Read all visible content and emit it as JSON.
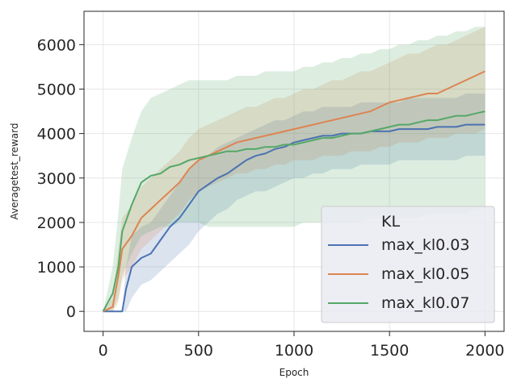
{
  "chart_data": {
    "type": "line",
    "title": "",
    "xlabel": "Epoch",
    "ylabel": "Averagetest_reward",
    "xlim": [
      -100,
      2100
    ],
    "ylim": [
      -450,
      6750
    ],
    "xticks": [
      "0",
      "500",
      "1000",
      "1500",
      "2000"
    ],
    "yticks": [
      "0",
      "1000",
      "2000",
      "3000",
      "4000",
      "5000",
      "6000"
    ],
    "grid": true,
    "legend": {
      "title": "KL",
      "placement": "lower-right"
    },
    "series": [
      {
        "name": "max_kl0.03",
        "color": "#4c72b0",
        "x": [
          0,
          50,
          100,
          120,
          150,
          200,
          250,
          300,
          350,
          400,
          450,
          500,
          550,
          600,
          650,
          700,
          750,
          800,
          850,
          900,
          950,
          1000,
          1050,
          1100,
          1150,
          1200,
          1250,
          1300,
          1350,
          1400,
          1450,
          1500,
          1550,
          1600,
          1650,
          1700,
          1750,
          1800,
          1850,
          1900,
          1950,
          2000
        ],
        "y": [
          0,
          0,
          0,
          500,
          1000,
          1200,
          1300,
          1600,
          1900,
          2100,
          2400,
          2700,
          2850,
          3000,
          3100,
          3250,
          3400,
          3500,
          3550,
          3650,
          3700,
          3800,
          3850,
          3900,
          3950,
          3950,
          4000,
          4000,
          4000,
          4050,
          4050,
          4050,
          4100,
          4100,
          4100,
          4100,
          4150,
          4150,
          4150,
          4200,
          4200,
          4200
        ],
        "lower": [
          0,
          0,
          0,
          0,
          300,
          600,
          700,
          900,
          1100,
          1300,
          1500,
          1800,
          2000,
          2200,
          2300,
          2500,
          2600,
          2700,
          2700,
          2800,
          2900,
          3000,
          3000,
          3100,
          3100,
          3200,
          3200,
          3200,
          3300,
          3300,
          3300,
          3300,
          3400,
          3400,
          3400,
          3400,
          3400,
          3400,
          3400,
          3500,
          3500,
          3500
        ],
        "upper": [
          0,
          0,
          0,
          1000,
          1700,
          1900,
          2000,
          2300,
          2600,
          2900,
          3200,
          3400,
          3500,
          3700,
          3800,
          3900,
          4000,
          4100,
          4200,
          4300,
          4300,
          4400,
          4500,
          4500,
          4600,
          4600,
          4600,
          4600,
          4700,
          4700,
          4700,
          4700,
          4700,
          4800,
          4800,
          4800,
          4800,
          4800,
          4800,
          4900,
          4900,
          4900
        ]
      },
      {
        "name": "max_kl0.05",
        "color": "#dd8452",
        "x": [
          0,
          50,
          80,
          100,
          150,
          200,
          250,
          300,
          350,
          400,
          450,
          500,
          550,
          600,
          650,
          700,
          750,
          800,
          850,
          900,
          950,
          1000,
          1050,
          1100,
          1150,
          1200,
          1250,
          1300,
          1350,
          1400,
          1450,
          1500,
          1550,
          1600,
          1650,
          1700,
          1750,
          1800,
          1850,
          1900,
          1950,
          2000
        ],
        "y": [
          0,
          100,
          800,
          1400,
          1700,
          2100,
          2300,
          2500,
          2700,
          2900,
          3200,
          3400,
          3500,
          3600,
          3700,
          3800,
          3850,
          3900,
          3950,
          4000,
          4050,
          4100,
          4150,
          4200,
          4250,
          4300,
          4350,
          4400,
          4450,
          4500,
          4600,
          4700,
          4750,
          4800,
          4850,
          4900,
          4900,
          5000,
          5100,
          5200,
          5300,
          5400
        ],
        "lower": [
          0,
          0,
          200,
          700,
          1000,
          1400,
          1600,
          1800,
          2000,
          2200,
          2500,
          2700,
          2800,
          2900,
          3000,
          3100,
          3100,
          3200,
          3200,
          3300,
          3300,
          3400,
          3400,
          3400,
          3500,
          3500,
          3500,
          3600,
          3600,
          3600,
          3700,
          3700,
          3800,
          3800,
          3800,
          3900,
          3900,
          3900,
          4000,
          4000,
          4000,
          4100
        ],
        "upper": [
          0,
          300,
          1400,
          2100,
          2400,
          2800,
          3000,
          3200,
          3400,
          3600,
          3900,
          4100,
          4200,
          4300,
          4400,
          4500,
          4600,
          4600,
          4700,
          4800,
          4800,
          4900,
          5000,
          5000,
          5100,
          5200,
          5200,
          5300,
          5400,
          5400,
          5500,
          5600,
          5700,
          5800,
          5800,
          5900,
          6000,
          6000,
          6100,
          6200,
          6300,
          6400
        ]
      },
      {
        "name": "max_kl0.07",
        "color": "#55a868",
        "x": [
          0,
          50,
          80,
          100,
          150,
          200,
          250,
          300,
          350,
          400,
          450,
          500,
          550,
          600,
          650,
          700,
          750,
          800,
          850,
          900,
          950,
          1000,
          1050,
          1100,
          1150,
          1200,
          1250,
          1300,
          1350,
          1400,
          1450,
          1500,
          1550,
          1600,
          1650,
          1700,
          1750,
          1800,
          1850,
          1900,
          1950,
          2000
        ],
        "y": [
          0,
          400,
          1000,
          1800,
          2400,
          2900,
          3050,
          3100,
          3250,
          3300,
          3400,
          3450,
          3500,
          3550,
          3600,
          3600,
          3650,
          3650,
          3700,
          3700,
          3750,
          3750,
          3800,
          3850,
          3900,
          3900,
          3950,
          4000,
          4000,
          4050,
          4100,
          4150,
          4200,
          4200,
          4250,
          4300,
          4300,
          4350,
          4400,
          4400,
          4450,
          4500
        ],
        "lower": [
          0,
          0,
          300,
          800,
          1300,
          1700,
          1800,
          1900,
          1900,
          2000,
          2000,
          2000,
          1900,
          1900,
          1900,
          1900,
          1900,
          1900,
          1900,
          1900,
          1900,
          1900,
          2000,
          2000,
          2000,
          2000,
          2000,
          2000,
          2000,
          2100,
          2100,
          2100,
          2100,
          2100,
          2100,
          2200,
          2200,
          2200,
          2200,
          2200,
          2300,
          2300
        ],
        "upper": [
          0,
          1000,
          2200,
          3200,
          3900,
          4500,
          4800,
          4900,
          5000,
          5100,
          5200,
          5200,
          5200,
          5200,
          5200,
          5300,
          5300,
          5300,
          5400,
          5400,
          5400,
          5400,
          5500,
          5500,
          5600,
          5600,
          5700,
          5700,
          5800,
          5800,
          5900,
          5900,
          6000,
          6000,
          6100,
          6100,
          6200,
          6200,
          6300,
          6300,
          6400,
          6400
        ]
      }
    ]
  }
}
